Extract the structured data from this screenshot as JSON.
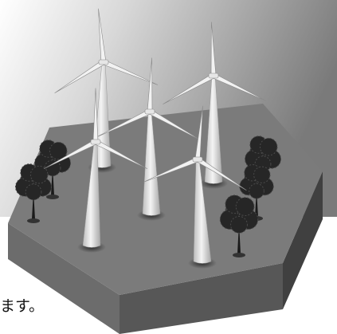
{
  "caption_fragment": "ます。"
}
